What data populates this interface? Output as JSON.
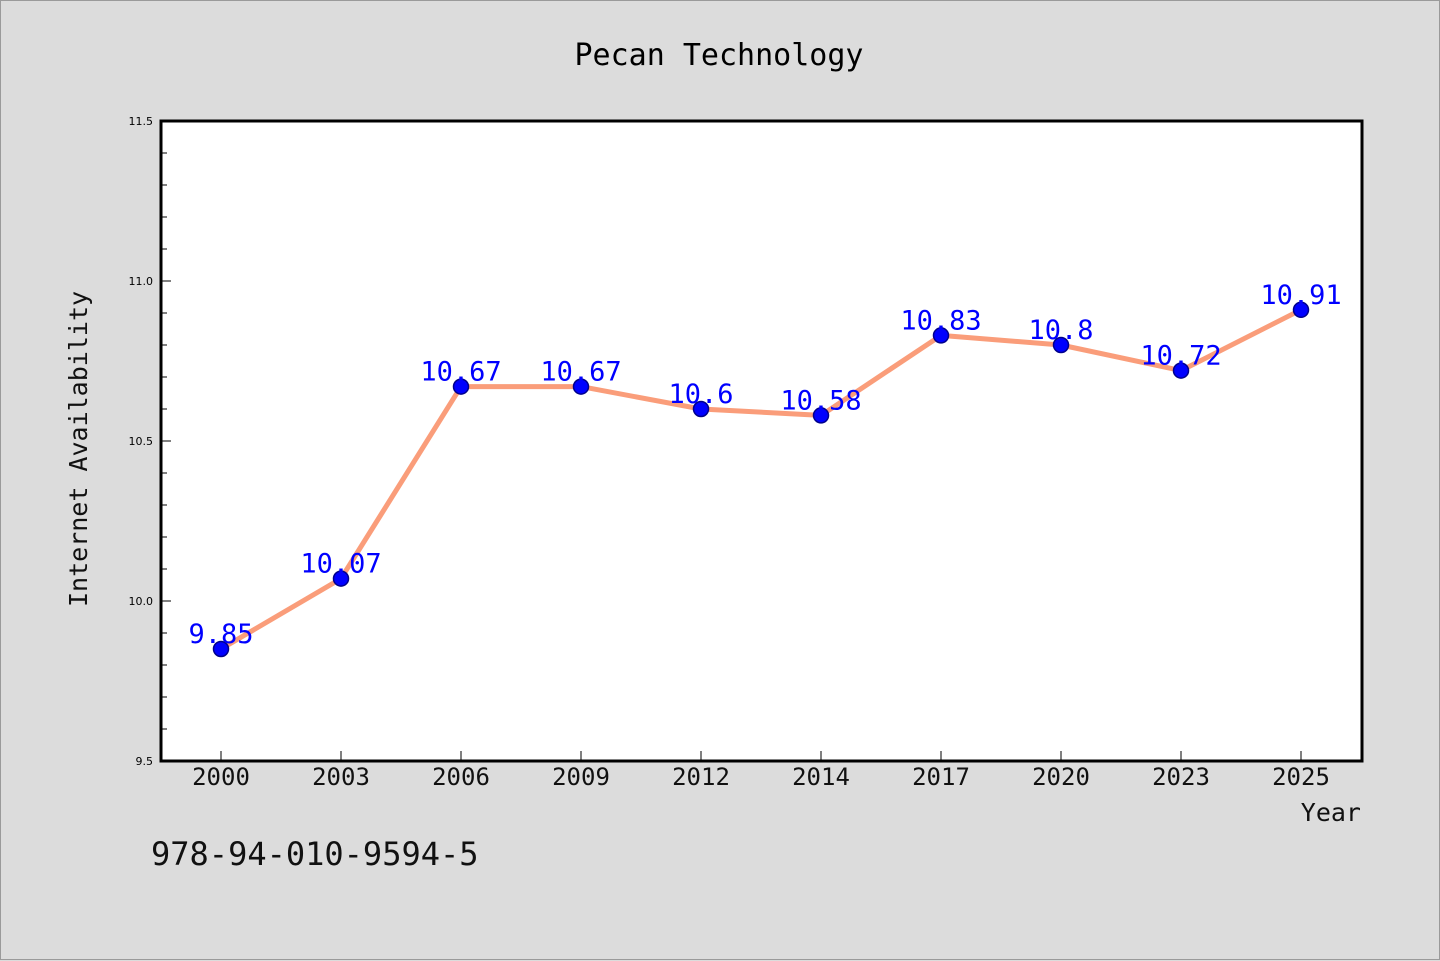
{
  "chart_data": {
    "type": "line",
    "title": "Pecan Technology",
    "xlabel": "Year",
    "ylabel": "Internet Availability",
    "categories": [
      "2000",
      "2003",
      "2006",
      "2009",
      "2012",
      "2014",
      "2017",
      "2020",
      "2023",
      "2025"
    ],
    "series": [
      {
        "values": [
          9.85,
          10.07,
          10.67,
          10.67,
          10.6,
          10.58,
          10.83,
          10.8,
          10.72,
          10.91
        ],
        "labels": [
          "9.85",
          "10.07",
          "10.67",
          "10.67",
          "10.6",
          "10.58",
          "10.83",
          "10.8",
          "10.72",
          "10.91"
        ]
      }
    ],
    "ylim": [
      9.5,
      11.5
    ],
    "yticks": [
      9.5,
      10.0,
      10.5,
      11.0,
      11.5
    ],
    "ytick_labels": [
      "9.5",
      "10.0",
      "10.5",
      "11.0",
      "11.5"
    ],
    "grid": false,
    "legend": "none",
    "colors": {
      "line": "#fa9d7a",
      "marker_fill": "#0000ff",
      "marker_edge": "#00008b",
      "data_label": "#0000ff",
      "plot_background": "#ffffff",
      "figure_background": "#dcdcdc"
    }
  },
  "footer": {
    "text": "978-94-010-9594-5"
  }
}
